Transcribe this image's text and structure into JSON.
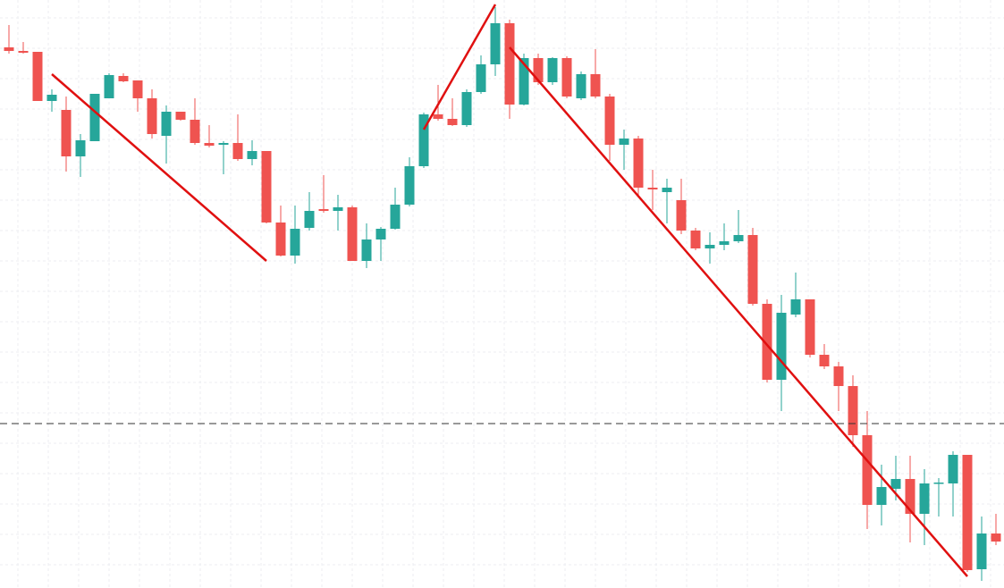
{
  "chart_data": {
    "type": "candlestick",
    "ylim": [
      0,
      658
    ],
    "up_color": "#26a69a",
    "down_color": "#ef5350",
    "grid": true,
    "open": [
      605,
      601,
      600,
      545,
      535,
      483,
      500,
      548,
      573,
      568,
      548,
      506,
      533,
      524,
      498,
      496,
      498,
      480,
      489,
      409,
      372,
      403,
      424,
      422,
      426,
      366,
      390,
      402,
      429,
      472,
      530,
      525,
      518,
      555,
      586,
      632,
      541,
      593,
      566,
      593,
      548,
      575,
      550,
      496,
      503,
      448,
      443,
      434,
      400,
      380,
      384,
      388,
      395,
      318,
      233,
      306,
      323,
      261,
      248,
      226,
      171,
      93,
      111,
      122,
      83,
      117,
      117,
      149,
      21,
      61
    ],
    "high": [
      630,
      611,
      600,
      558,
      550,
      508,
      553,
      576,
      576,
      568,
      558,
      540,
      533,
      548,
      518,
      500,
      530,
      501,
      489,
      428,
      428,
      443,
      462,
      440,
      428,
      408,
      404,
      448,
      482,
      532,
      563,
      548,
      558,
      596,
      650,
      636,
      598,
      598,
      594,
      595,
      578,
      603,
      553,
      513,
      506,
      468,
      458,
      458,
      403,
      398,
      408,
      423,
      403,
      323,
      328,
      353,
      323,
      273,
      253,
      238,
      198,
      138,
      148,
      148,
      133,
      123,
      153,
      149,
      80,
      83
    ],
    "low": [
      598,
      598,
      545,
      533,
      466,
      460,
      500,
      548,
      566,
      533,
      503,
      475,
      523,
      496,
      493,
      463,
      478,
      473,
      408,
      371,
      363,
      400,
      420,
      400,
      366,
      358,
      366,
      401,
      427,
      470,
      523,
      517,
      516,
      553,
      573,
      525,
      540,
      563,
      563,
      548,
      546,
      548,
      478,
      468,
      438,
      423,
      408,
      396,
      378,
      363,
      378,
      386,
      316,
      230,
      198,
      303,
      258,
      245,
      198,
      158,
      66,
      70,
      98,
      51,
      48,
      80,
      80,
      18,
      8,
      48
    ],
    "close": [
      601,
      599,
      545,
      552,
      483,
      501,
      553,
      574,
      567,
      548,
      508,
      533,
      524,
      498,
      495,
      498,
      480,
      489,
      409,
      372,
      402,
      422,
      422,
      426,
      366,
      390,
      402,
      429,
      472,
      530,
      525,
      518,
      555,
      586,
      632,
      541,
      593,
      566,
      593,
      550,
      575,
      550,
      496,
      503,
      448,
      446,
      448,
      400,
      380,
      384,
      388,
      395,
      318,
      233,
      308,
      323,
      261,
      248,
      226,
      171,
      93,
      113,
      122,
      83,
      117,
      118,
      149,
      20,
      61,
      52
    ],
    "hline": {
      "value": 184,
      "color": "#333333"
    },
    "trendlines": [
      {
        "x": [
          3,
          18
        ],
        "y": [
          575,
          366
        ],
        "color": "#e01010"
      },
      {
        "x": [
          29,
          34
        ],
        "y": [
          513,
          653
        ],
        "color": "#e01010"
      },
      {
        "x": [
          35,
          67
        ],
        "y": [
          605,
          13
        ],
        "color": "#e01010"
      }
    ]
  }
}
